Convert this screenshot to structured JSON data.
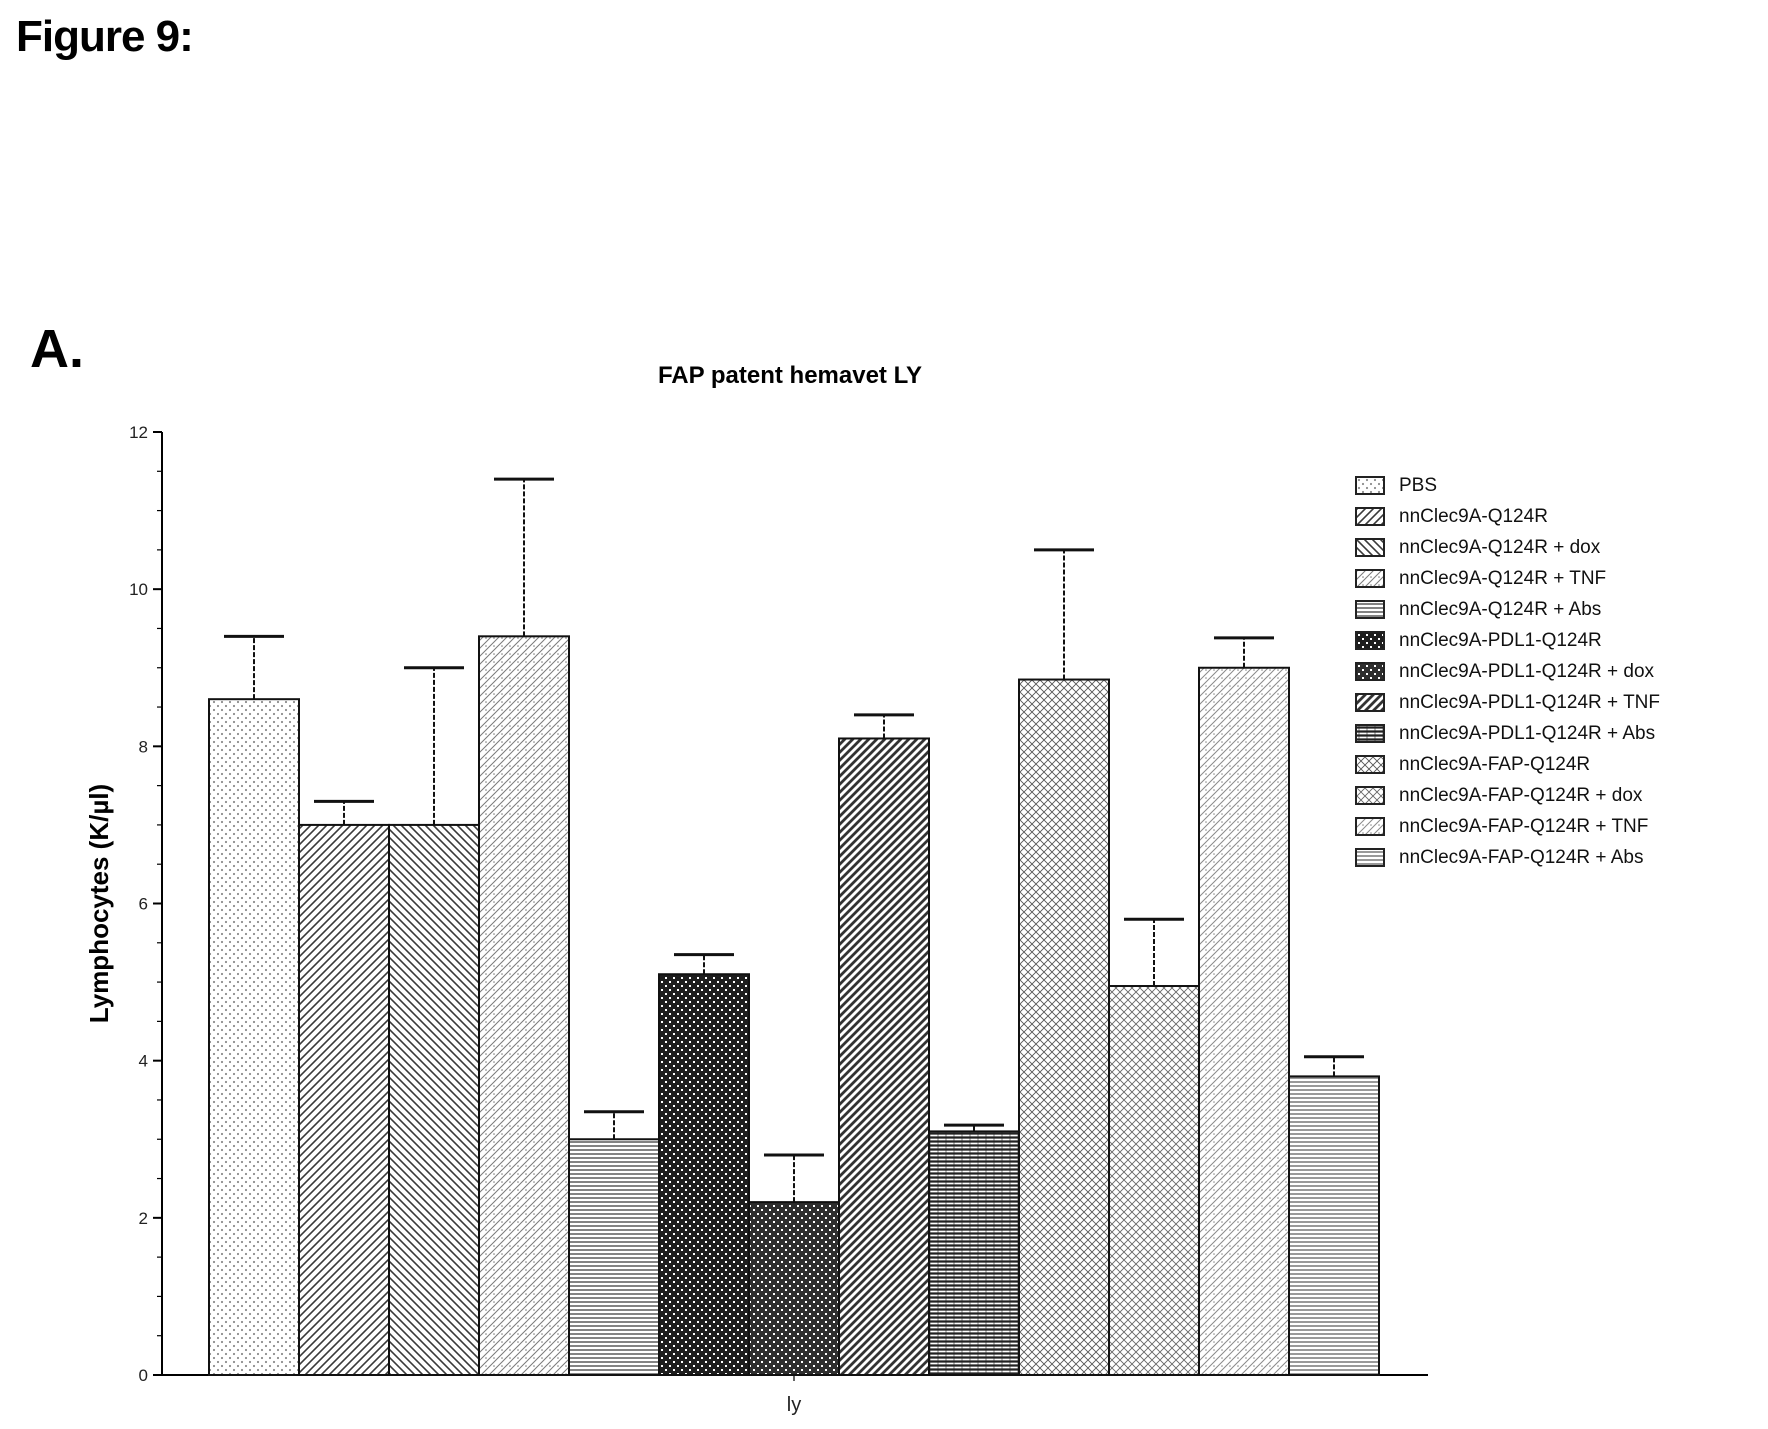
{
  "figure_title": "Figure 9:",
  "panel_label": "A.",
  "chart_data": {
    "type": "bar",
    "title": "FAP patent hemavet LY",
    "xlabel": "ly",
    "ylabel": "Lymphocytes (K/µl)",
    "ylim": [
      0,
      12
    ],
    "yticks": [
      "0",
      "2",
      "4",
      "6",
      "8",
      "10",
      "12"
    ],
    "grid": false,
    "legend_position": "right",
    "categories": [
      "ly"
    ],
    "series": [
      {
        "name": "PBS",
        "values": [
          8.6
        ],
        "error": 0.8,
        "pattern": "dots",
        "color": "#8c8c8c"
      },
      {
        "name": "nnClec9A-Q124R",
        "values": [
          7.0
        ],
        "error": 0.3,
        "pattern": "diag-right",
        "color": "#3a3a3a"
      },
      {
        "name": "nnClec9A-Q124R + dox",
        "values": [
          7.0
        ],
        "error": 2.0,
        "pattern": "diag-left",
        "color": "#3a3a3a"
      },
      {
        "name": "nnClec9A-Q124R + TNF",
        "values": [
          9.4
        ],
        "error": 2.0,
        "pattern": "diag-cross-light",
        "color": "#7a7a7a"
      },
      {
        "name": "nnClec9A-Q124R + Abs",
        "values": [
          3.0
        ],
        "error": 0.35,
        "pattern": "horizontal",
        "color": "#5a5a5a"
      },
      {
        "name": "nnClec9A-PDL1-Q124R",
        "values": [
          5.1
        ],
        "error": 0.25,
        "pattern": "dense-check",
        "color": "#1e1e1e"
      },
      {
        "name": "nnClec9A-PDL1-Q124R + dox",
        "values": [
          2.2
        ],
        "error": 0.6,
        "pattern": "dense-check",
        "color": "#2e2e2e"
      },
      {
        "name": "nnClec9A-PDL1-Q124R + TNF",
        "values": [
          8.1
        ],
        "error": 0.3,
        "pattern": "diag-thick",
        "color": "#333333"
      },
      {
        "name": "nnClec9A-PDL1-Q124R + Abs",
        "values": [
          3.1
        ],
        "error": 0.08,
        "pattern": "horizontal-thick",
        "color": "#222222"
      },
      {
        "name": "nnClec9A-FAP-Q124R",
        "values": [
          8.85
        ],
        "error": 1.65,
        "pattern": "fine-hatch",
        "color": "#555555"
      },
      {
        "name": "nnClec9A-FAP-Q124R + dox",
        "values": [
          4.95
        ],
        "error": 0.85,
        "pattern": "fine-hatch",
        "color": "#666666"
      },
      {
        "name": "nnClec9A-FAP-Q124R + TNF",
        "values": [
          9.0
        ],
        "error": 0.38,
        "pattern": "diag-cross-light",
        "color": "#8a8a8a"
      },
      {
        "name": "nnClec9A-FAP-Q124R + Abs",
        "values": [
          3.8
        ],
        "error": 0.25,
        "pattern": "horizontal",
        "color": "#777777"
      }
    ]
  }
}
